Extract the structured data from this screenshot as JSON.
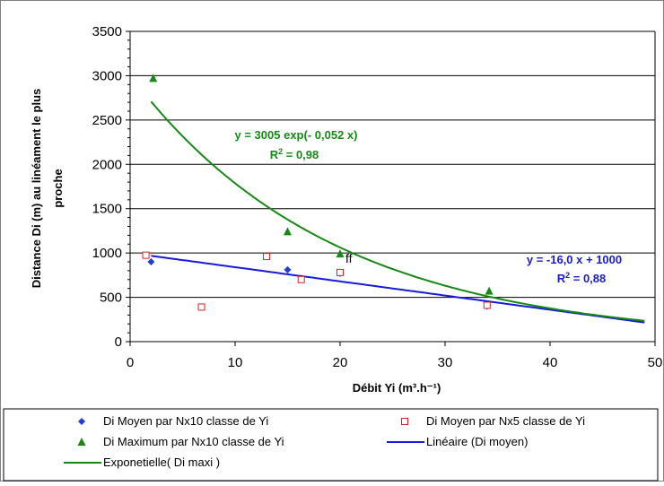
{
  "chart_data": {
    "type": "scatter",
    "xlabel": "Débit Yi (m³.h⁻¹)",
    "ylabel_lines": [
      "Distance Di (m) au linéament le plus",
      "proche"
    ],
    "xlim": [
      0,
      50
    ],
    "ylim": [
      0,
      3500
    ],
    "x_ticks": [
      "0",
      "10",
      "20",
      "30",
      "40",
      "50"
    ],
    "y_ticks": [
      "0",
      "500",
      "1000",
      "1500",
      "2000",
      "2500",
      "3000",
      "3500"
    ],
    "grid": "horizontal",
    "legend_position": "bottom",
    "series": [
      {
        "name": "Di Moyen par Nx10 classe de Yi",
        "marker": "diamond",
        "color": "#1f3fd6",
        "points": [
          [
            2,
            900
          ],
          [
            15,
            810
          ],
          [
            20,
            770
          ],
          [
            34,
            400
          ]
        ]
      },
      {
        "name": "Di Moyen par Nx5 classe de Yi",
        "marker": "square-open",
        "color": "#e02020",
        "points": [
          [
            1.5,
            975
          ],
          [
            6.8,
            390
          ],
          [
            13,
            960
          ],
          [
            16.3,
            700
          ],
          [
            20,
            780
          ],
          [
            34,
            410
          ]
        ]
      },
      {
        "name": "Di Maximum par Nx10 classe de Yi",
        "marker": "triangle",
        "color": "#148a14",
        "points": [
          [
            2.2,
            2970
          ],
          [
            15,
            1240
          ],
          [
            20,
            990
          ],
          [
            34.2,
            570
          ]
        ]
      },
      {
        "name": "Linéaire (Di moyen)",
        "type": "line",
        "color": "#1a1adb",
        "fit": {
          "slope": -16.0,
          "intercept": 1000
        },
        "x_range": [
          2,
          49
        ]
      },
      {
        "name": "Exponetielle( Di maxi )",
        "type": "line",
        "color": "#148a14",
        "fit": {
          "a": 3005,
          "b": -0.052
        },
        "x_range": [
          2,
          49
        ]
      }
    ],
    "annotations": {
      "exp_equation": "y = 3005 exp(- 0,052 x)",
      "exp_r2_prefix": "R",
      "exp_r2_sup": "2",
      "exp_r2_value": " = 0,98",
      "lin_equation": "y = -16,0 x + 1000",
      "lin_r2_prefix": "R",
      "lin_r2_sup": "2",
      "lin_r2_value": " = 0,88",
      "point_label": "ff"
    }
  },
  "colors": {
    "axis": "#000000",
    "grid": "#000000",
    "frame": "#808080"
  }
}
